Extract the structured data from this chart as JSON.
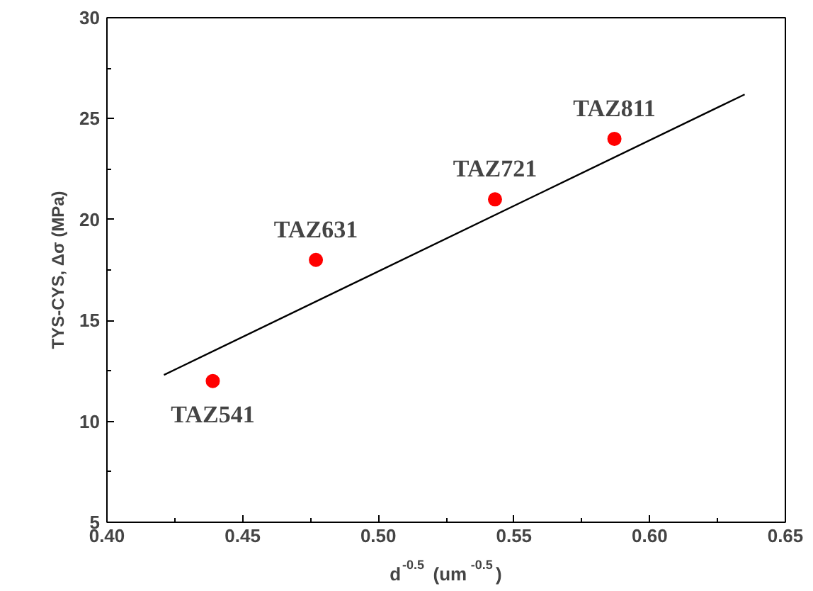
{
  "chart_data": {
    "type": "scatter",
    "xlabel": "d$^{-0.5}$ (um$^{-0.5}$)",
    "ylabel": "TYS-CYS, Δσ (MPa)",
    "x": [
      0.439,
      0.477,
      0.543,
      0.587
    ],
    "series": [
      {
        "color": "#ff0000",
        "values": [
          12,
          18,
          21,
          24
        ],
        "marker": "circle"
      },
      {
        "type": "line",
        "color": "#000000",
        "x": [
          0.421,
          0.635
        ],
        "values": [
          12.3,
          26.2
        ],
        "line_style": "solid"
      }
    ],
    "annotations": [
      {
        "text": "TAZ541",
        "x": 0.439,
        "y": 12
      },
      {
        "text": "TAZ631",
        "x": 0.477,
        "y": 18
      },
      {
        "text": "TAZ721",
        "x": 0.543,
        "y": 21
      },
      {
        "text": "TAZ811",
        "x": 0.587,
        "y": 24
      }
    ],
    "xlim": [
      0.4,
      0.65
    ],
    "ylim": [
      5,
      30
    ],
    "xticks": [
      {
        "value": 0.4,
        "label": "0.40"
      },
      {
        "value": 0.45,
        "label": "0.45"
      },
      {
        "value": 0.5,
        "label": "0.50"
      },
      {
        "value": 0.55,
        "label": "0.55"
      },
      {
        "value": 0.6,
        "label": "0.60"
      },
      {
        "value": 0.65,
        "label": "0.65"
      }
    ],
    "yticks": [
      5,
      10,
      15,
      20,
      25,
      30
    ],
    "grid": false
  }
}
